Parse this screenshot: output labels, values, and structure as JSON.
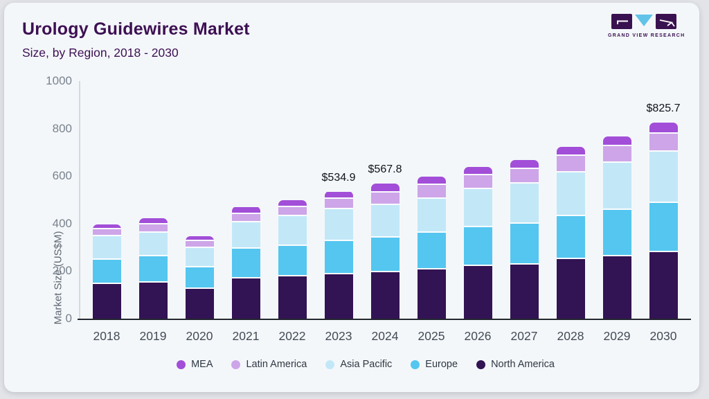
{
  "header": {
    "title": "Urology Guidewires Market",
    "subtitle": "Size, by Region, 2018 - 2030",
    "logo_text": "GRAND VIEW RESEARCH"
  },
  "chart_data": {
    "type": "bar",
    "stacked": true,
    "title": "Urology Guidewires Market Size, by Region, 2018 - 2030",
    "xlabel": "",
    "ylabel": "Market Size (US$M)",
    "ylim": [
      0,
      1000
    ],
    "yticks": [
      "0",
      "200",
      "400",
      "600",
      "800",
      "1000"
    ],
    "grid": false,
    "legend_position": "bottom",
    "categories": [
      "2018",
      "2019",
      "2020",
      "2021",
      "2022",
      "2023",
      "2024",
      "2025",
      "2026",
      "2027",
      "2028",
      "2029",
      "2030"
    ],
    "series": [
      {
        "name": "North America",
        "color": "#321353",
        "values": [
          146,
          152,
          125,
          168,
          177,
          187,
          194,
          206,
          222,
          228,
          251,
          264,
          280
        ]
      },
      {
        "name": "Europe",
        "color": "#54c6f0",
        "values": [
          103,
          110,
          91,
          126,
          129,
          140,
          146,
          155,
          163,
          172,
          181,
          195,
          208
        ]
      },
      {
        "name": "Asia Pacific",
        "color": "#c2e8f8",
        "values": [
          98,
          100,
          82,
          112,
          126,
          133,
          139,
          145,
          160,
          170,
          185,
          197,
          215
        ]
      },
      {
        "name": "Latin America",
        "color": "#cda5e8",
        "values": [
          29,
          34,
          29,
          33,
          37,
          44,
          52,
          56,
          58,
          60,
          68,
          72,
          76
        ]
      },
      {
        "name": "MEA",
        "color": "#a24ed8",
        "values": [
          21,
          26,
          20,
          32,
          29,
          31,
          37,
          36,
          36,
          38,
          39,
          40,
          47
        ]
      }
    ],
    "legend_order": [
      "MEA",
      "Latin America",
      "Asia Pacific",
      "Europe",
      "North America"
    ],
    "annotations": [
      {
        "category": "2023",
        "text": "$534.9"
      },
      {
        "category": "2024",
        "text": "$567.8"
      },
      {
        "category": "2030",
        "text": "$825.7"
      }
    ]
  },
  "colors": {
    "card_bg": "#f4f7fa",
    "accent_purple": "#3d1053",
    "axis_line": "#23282f",
    "segment_gap": "#fbfdfe"
  }
}
